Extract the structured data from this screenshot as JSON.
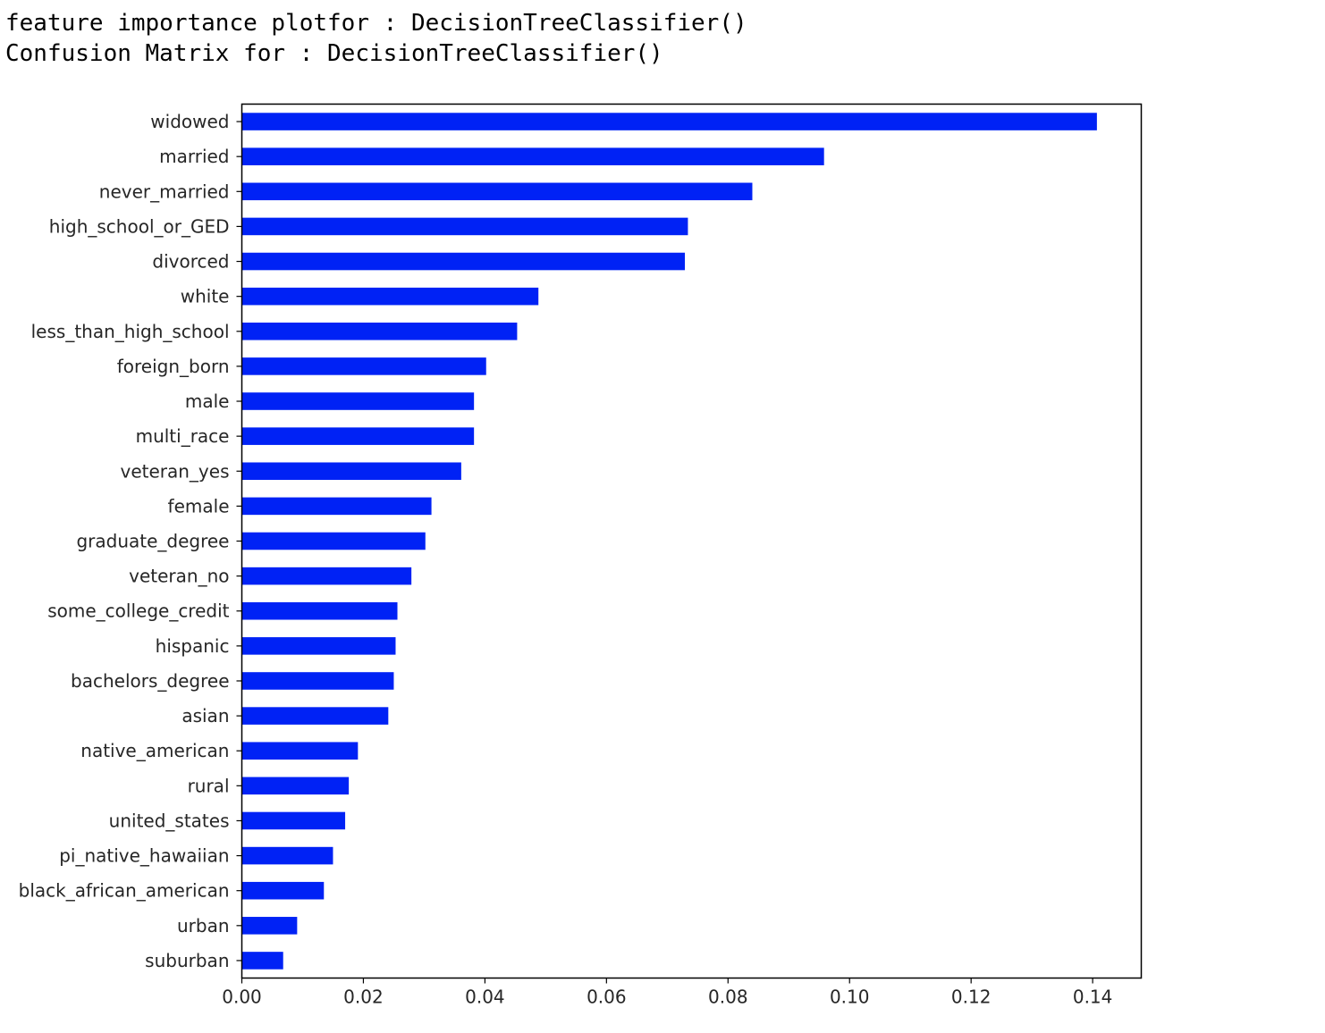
{
  "output": {
    "line1": "feature importance plotfor : DecisionTreeClassifier()",
    "line2": "Confusion Matrix for : DecisionTreeClassifier()"
  },
  "chart_data": {
    "type": "bar",
    "orientation": "horizontal",
    "title": "",
    "xlabel": "",
    "ylabel": "",
    "bar_color": "#0022f5",
    "grid": false,
    "xlim": [
      0,
      0.148
    ],
    "xticks": [
      "0.00",
      "0.02",
      "0.04",
      "0.06",
      "0.08",
      "0.10",
      "0.12",
      "0.14"
    ],
    "categories": [
      "widowed",
      "married",
      "never_married",
      "high_school_or_GED",
      "divorced",
      "white",
      "less_than_high_school",
      "foreign_born",
      "male",
      "multi_race",
      "veteran_yes",
      "female",
      "graduate_degree",
      "veteran_no",
      "some_college_credit",
      "hispanic",
      "bachelors_degree",
      "asian",
      "native_american",
      "rural",
      "united_states",
      "pi_native_hawaiian",
      "black_african_american",
      "urban",
      "suburban"
    ],
    "values": [
      0.1407,
      0.0958,
      0.084,
      0.0734,
      0.0729,
      0.0488,
      0.0453,
      0.0402,
      0.0382,
      0.0382,
      0.0361,
      0.0312,
      0.0302,
      0.0279,
      0.0256,
      0.0253,
      0.025,
      0.0241,
      0.0191,
      0.0176,
      0.017,
      0.015,
      0.0135,
      0.0091,
      0.0068
    ]
  }
}
